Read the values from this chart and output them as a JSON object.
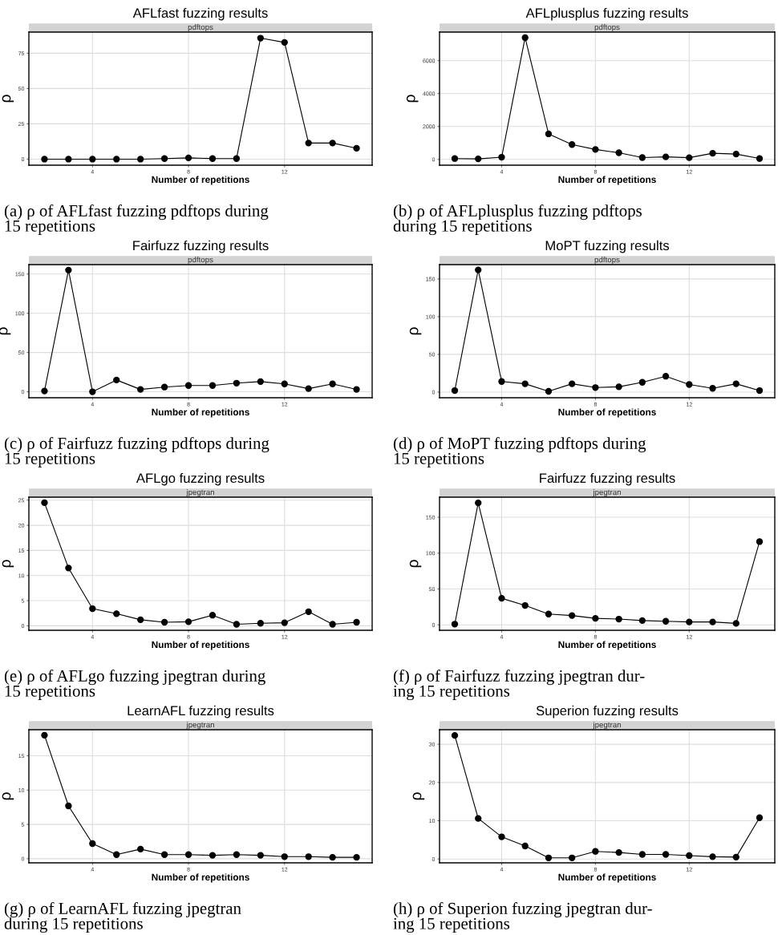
{
  "chart_data": [
    {
      "type": "line",
      "title": "AFLfast fuzzing results",
      "subtitle": "pdftops",
      "xlabel": "Number of repetitions",
      "ylabel": "ρ",
      "x": [
        2,
        3,
        4,
        5,
        6,
        7,
        8,
        9,
        10,
        11,
        12,
        13,
        14,
        15
      ],
      "xlim": [
        1.35,
        15.65
      ],
      "xticks": [
        4,
        8,
        12
      ],
      "ylim": [
        -4.3,
        90
      ],
      "yticks": [
        0,
        25,
        50,
        75
      ],
      "grid": true,
      "marker": "circle",
      "series": [
        {
          "color": "#000000",
          "values": [
            0,
            0,
            0,
            0,
            0,
            0.4,
            0.9,
            0.4,
            0.4,
            85.7,
            82.7,
            11.4,
            11.4,
            7.7
          ]
        }
      ],
      "annotations": [
        "(a) ρ of AFLfast fuzzing pdftops during\n15 repetitions"
      ]
    },
    {
      "type": "line",
      "title": "AFLplusplus fuzzing results",
      "subtitle": "pdftops",
      "xlabel": "Number of repetitions",
      "ylabel": "ρ",
      "x": [
        2,
        3,
        4,
        5,
        6,
        7,
        8,
        9,
        10,
        11,
        12,
        13,
        14,
        15
      ],
      "xlim": [
        1.35,
        15.65
      ],
      "xticks": [
        4,
        8,
        12
      ],
      "ylim": [
        -355,
        7740
      ],
      "yticks": [
        0,
        2000,
        4000,
        6000
      ],
      "grid": true,
      "marker": "circle",
      "series": [
        {
          "color": "#000000",
          "values": [
            50,
            30,
            130,
            7400,
            1550,
            900,
            600,
            400,
            110,
            150,
            100,
            370,
            320,
            50
          ]
        }
      ],
      "annotations": [
        "(b) ρ of AFLplusplus fuzzing pdftops\nduring 15 repetitions"
      ]
    },
    {
      "type": "line",
      "title": "Fairfuzz fuzzing results",
      "subtitle": "pdftops",
      "xlabel": "Number of repetitions",
      "ylabel": "ρ",
      "x": [
        2,
        3,
        4,
        5,
        6,
        7,
        8,
        9,
        10,
        11,
        12,
        13,
        14,
        15
      ],
      "xlim": [
        1.35,
        15.65
      ],
      "xticks": [
        4,
        8,
        12
      ],
      "ylim": [
        -7.6,
        162
      ],
      "yticks": [
        0,
        50,
        100,
        150
      ],
      "grid": true,
      "marker": "circle",
      "series": [
        {
          "color": "#000000",
          "values": [
            1,
            155,
            0,
            15,
            3,
            6,
            8,
            8,
            11,
            13,
            10,
            4,
            10,
            3
          ]
        }
      ],
      "annotations": [
        "(c) ρ of Fairfuzz fuzzing pdftops during\n15 repetitions"
      ]
    },
    {
      "type": "line",
      "title": "MoPT fuzzing results",
      "subtitle": "pdftops",
      "xlabel": "Number of repetitions",
      "ylabel": "ρ",
      "x": [
        2,
        3,
        4,
        5,
        6,
        7,
        8,
        9,
        10,
        11,
        12,
        13,
        14,
        15
      ],
      "xlim": [
        1.35,
        15.65
      ],
      "xticks": [
        4,
        8,
        12
      ],
      "ylim": [
        -7.5,
        169
      ],
      "yticks": [
        0,
        50,
        100,
        150
      ],
      "grid": true,
      "marker": "circle",
      "series": [
        {
          "color": "#000000",
          "values": [
            2,
            162,
            14,
            11,
            1,
            11,
            6,
            7,
            13,
            21,
            10,
            5,
            11,
            2
          ]
        }
      ],
      "annotations": [
        "(d) ρ of MoPT fuzzing pdftops during\n15 repetitions"
      ]
    },
    {
      "type": "line",
      "title": "AFLgo fuzzing results",
      "subtitle": "jpegtran",
      "xlabel": "Number of repetitions",
      "ylabel": "ρ",
      "x": [
        2,
        3,
        4,
        5,
        6,
        7,
        8,
        9,
        10,
        11,
        12,
        13,
        14,
        15
      ],
      "xlim": [
        1.35,
        15.65
      ],
      "xticks": [
        4,
        8,
        12
      ],
      "ylim": [
        -0.9,
        25.6
      ],
      "yticks": [
        0,
        5,
        10,
        15,
        20,
        25
      ],
      "grid": true,
      "marker": "circle",
      "series": [
        {
          "color": "#000000",
          "values": [
            24.5,
            11.5,
            3.4,
            2.4,
            1.2,
            0.7,
            0.8,
            2.1,
            0.3,
            0.5,
            0.6,
            2.8,
            0.3,
            0.7
          ]
        }
      ],
      "annotations": [
        "(e) ρ of AFLgo fuzzing jpegtran during\n15 repetitions"
      ]
    },
    {
      "type": "line",
      "title": "Fairfuzz fuzzing results",
      "subtitle": "jpegtran",
      "xlabel": "Number of repetitions",
      "ylabel": "ρ",
      "x": [
        2,
        3,
        4,
        5,
        6,
        7,
        8,
        9,
        10,
        11,
        12,
        13,
        14,
        15
      ],
      "xlim": [
        1.35,
        15.65
      ],
      "xticks": [
        4,
        8,
        12
      ],
      "ylim": [
        -7.6,
        178
      ],
      "yticks": [
        0,
        50,
        100,
        150
      ],
      "grid": true,
      "marker": "circle",
      "series": [
        {
          "color": "#000000",
          "values": [
            1,
            170,
            37,
            27,
            15,
            13,
            9,
            8,
            6,
            5,
            4,
            4,
            2,
            116
          ]
        }
      ],
      "annotations": [
        "(f) ρ of Fairfuzz fuzzing jpegtran dur-\ning 15 repetitions"
      ]
    },
    {
      "type": "line",
      "title": "LearnAFL fuzzing results",
      "subtitle": "jpegtran",
      "xlabel": "Number of repetitions",
      "ylabel": "ρ",
      "x": [
        2,
        3,
        4,
        5,
        6,
        7,
        8,
        9,
        10,
        11,
        12,
        13,
        14,
        15
      ],
      "xlim": [
        1.35,
        15.65
      ],
      "xticks": [
        4,
        8,
        12
      ],
      "ylim": [
        -0.6,
        18.8
      ],
      "yticks": [
        0,
        5,
        10,
        15
      ],
      "grid": true,
      "marker": "circle",
      "series": [
        {
          "color": "#000000",
          "values": [
            18,
            7.7,
            2.2,
            0.6,
            1.4,
            0.6,
            0.6,
            0.5,
            0.6,
            0.5,
            0.3,
            0.3,
            0.2,
            0.2
          ]
        }
      ],
      "annotations": [
        "(g) ρ of LearnAFL fuzzing jpegtran\nduring 15 repetitions"
      ]
    },
    {
      "type": "line",
      "title": "Superion fuzzing results",
      "subtitle": "jpegtran",
      "xlabel": "Number of repetitions",
      "ylabel": "ρ",
      "x": [
        2,
        3,
        4,
        5,
        6,
        7,
        8,
        9,
        10,
        11,
        12,
        13,
        14,
        15
      ],
      "xlim": [
        1.35,
        15.65
      ],
      "xticks": [
        4,
        8,
        12
      ],
      "ylim": [
        -1,
        33.8
      ],
      "yticks": [
        0,
        10,
        20,
        30
      ],
      "grid": true,
      "marker": "circle",
      "series": [
        {
          "color": "#000000",
          "values": [
            32.3,
            10.6,
            5.8,
            3.4,
            0.3,
            0.3,
            2.0,
            1.7,
            1.2,
            1.2,
            0.9,
            0.6,
            0.5,
            10.8
          ]
        }
      ],
      "annotations": [
        "(h) ρ of Superion fuzzing jpegtran dur-\ning 15 repetitions"
      ]
    }
  ]
}
